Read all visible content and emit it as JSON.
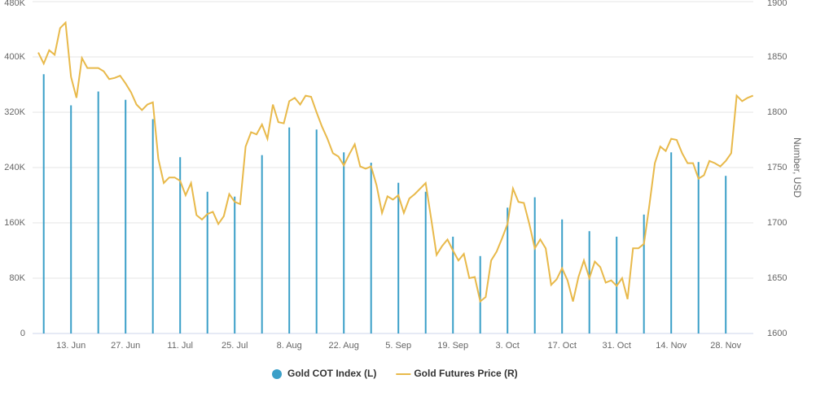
{
  "chart_data": {
    "type": "bar-line",
    "categories": [
      null,
      null,
      null,
      null,
      null,
      null,
      "13. Jun",
      null,
      null,
      null,
      null,
      null,
      null,
      null,
      null,
      null,
      "27. Jun",
      null,
      null,
      null,
      null,
      null,
      null,
      null,
      null,
      null,
      "11. Jul",
      null,
      null,
      null,
      null,
      null,
      null,
      null,
      null,
      null,
      "25. Jul",
      null,
      null,
      null,
      null,
      null,
      null,
      null,
      null,
      null,
      "8. Aug",
      null,
      null,
      null,
      null,
      null,
      null,
      null,
      null,
      null,
      "22. Aug",
      null,
      null,
      null,
      null,
      null,
      null,
      null,
      null,
      null,
      "5. Sep",
      null,
      null,
      null,
      null,
      null,
      null,
      null,
      null,
      null,
      "19. Sep",
      null,
      null,
      null,
      null,
      null,
      null,
      null,
      null,
      null,
      "3. Oct",
      null,
      null,
      null,
      null,
      null,
      null,
      null,
      null,
      null,
      "17. Oct",
      null,
      null,
      null,
      null,
      null,
      null,
      null,
      null,
      null,
      "31. Oct",
      null,
      null,
      null,
      null,
      null,
      null,
      null,
      null,
      null,
      "14. Nov",
      null,
      null,
      null,
      null,
      null,
      null,
      null,
      null,
      null,
      "28. Nov",
      null,
      null,
      null,
      null,
      null
    ],
    "series": [
      {
        "name": "Gold COT Index (L)",
        "type": "bar",
        "color": "#3a9fc8",
        "axis": "y",
        "values": [
          null,
          375000,
          null,
          null,
          null,
          null,
          330000,
          null,
          null,
          null,
          null,
          350000,
          null,
          null,
          null,
          null,
          338000,
          null,
          null,
          null,
          null,
          310000,
          null,
          null,
          null,
          null,
          255000,
          null,
          null,
          null,
          null,
          205000,
          null,
          null,
          null,
          null,
          198000,
          null,
          null,
          null,
          null,
          258000,
          null,
          null,
          null,
          null,
          298000,
          null,
          null,
          null,
          null,
          295000,
          null,
          null,
          null,
          null,
          262000,
          null,
          null,
          null,
          null,
          247000,
          null,
          null,
          null,
          null,
          218000,
          null,
          null,
          null,
          null,
          205000,
          null,
          null,
          null,
          null,
          140000,
          null,
          null,
          null,
          null,
          112000,
          null,
          null,
          null,
          null,
          182000,
          null,
          null,
          null,
          null,
          197000,
          null,
          null,
          null,
          null,
          165000,
          null,
          null,
          null,
          null,
          148000,
          null,
          null,
          null,
          null,
          140000,
          null,
          null,
          null,
          null,
          172000,
          null,
          null,
          null,
          null,
          262000,
          null,
          null,
          null,
          null,
          248000,
          null,
          null,
          null,
          null,
          228000,
          null,
          null,
          null,
          null,
          null
        ]
      },
      {
        "name": "Gold Futures Price (R)",
        "type": "line",
        "color": "#e8b94a",
        "axis": "y2",
        "values": [
          1854,
          1844,
          1856,
          1852,
          1876,
          1881,
          1832,
          1813,
          1849,
          1840,
          1840,
          1840,
          1837,
          1830,
          1831,
          1833,
          1826,
          1818,
          1807,
          1802,
          1807,
          1809,
          1758,
          1736,
          1741,
          1741,
          1738,
          1725,
          1736,
          1707,
          1703,
          1708,
          1710,
          1699,
          1706,
          1726,
          1719,
          1717,
          1769,
          1782,
          1780,
          1789,
          1776,
          1807,
          1791,
          1790,
          1810,
          1813,
          1807,
          1815,
          1814,
          1800,
          1787,
          1776,
          1763,
          1760,
          1752,
          1762,
          1771,
          1751,
          1749,
          1751,
          1734,
          1709,
          1724,
          1721,
          1725,
          1709,
          1722,
          1726,
          1731,
          1736,
          1704,
          1671,
          1679,
          1685,
          1675,
          1666,
          1672,
          1650,
          1651,
          1629,
          1633,
          1666,
          1674,
          1686,
          1699,
          1731,
          1719,
          1718,
          1699,
          1677,
          1685,
          1677,
          1644,
          1649,
          1659,
          1648,
          1629,
          1651,
          1666,
          1650,
          1665,
          1660,
          1646,
          1648,
          1643,
          1650,
          1631,
          1677,
          1677,
          1681,
          1716,
          1754,
          1769,
          1765,
          1776,
          1775,
          1763,
          1754,
          1754,
          1740,
          1743,
          1756,
          1754,
          1751,
          1756,
          1763,
          1815,
          1810,
          1813,
          1815
        ]
      }
    ],
    "ylim": [
      0,
      480000
    ],
    "yticks": [
      0,
      {
        "value": 80000,
        "label": "80K"
      },
      {
        "value": 160000,
        "label": "160K"
      },
      {
        "value": 240000,
        "label": "240K"
      },
      {
        "value": 320000,
        "label": "320K"
      },
      {
        "value": 400000,
        "label": "400K"
      },
      {
        "value": 480000,
        "label": "480K"
      }
    ],
    "y2lim": [
      1600,
      1900
    ],
    "y2ticks": [
      1600,
      1650,
      1700,
      1750,
      1800,
      1850,
      1900
    ],
    "y2label": "Number, USD",
    "grid": true
  }
}
